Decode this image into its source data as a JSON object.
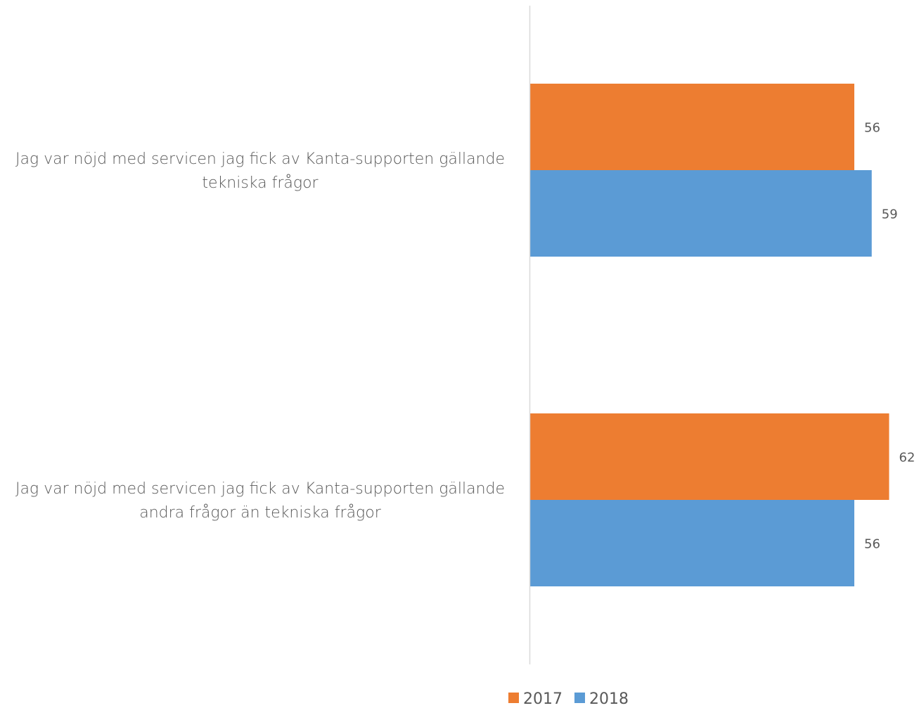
{
  "chart_data": {
    "type": "bar",
    "orientation": "horizontal",
    "categories": [
      [
        "Jag var nöjd med servicen jag fick av Kanta-supporten gällande",
        "tekniska frågor"
      ],
      [
        "Jag var nöjd med servicen jag fick av Kanta-supporten gällande",
        "andra frågor än tekniska frågor"
      ]
    ],
    "series": [
      {
        "name": "2017",
        "color": "#ED7D31",
        "values": [
          56,
          62
        ]
      },
      {
        "name": "2018",
        "color": "#5B9BD5",
        "values": [
          59,
          56
        ]
      }
    ],
    "xlim": [
      0,
      66
    ],
    "grid": false,
    "axis_color": "#D9D9D9",
    "label_color": "#595959",
    "legend": {
      "position": "bottom"
    }
  }
}
